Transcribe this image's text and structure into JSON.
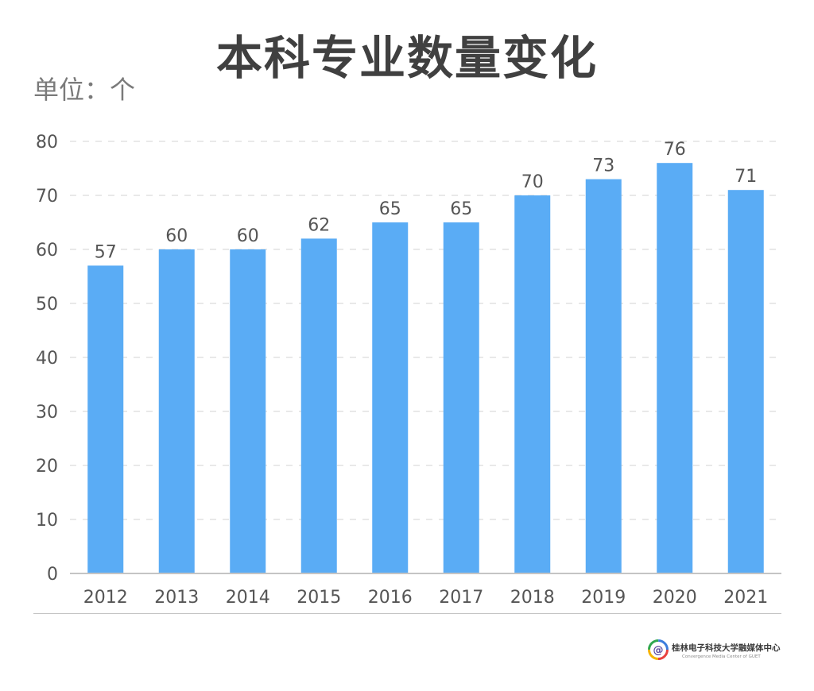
{
  "title": "本科专业数量变化",
  "unit_label": "单位：个",
  "colors": {
    "bar": "#5aacf5",
    "title": "#404040",
    "axis_text": "#555555",
    "grid": "#e2e2e2",
    "axis_line": "#c4c4c4"
  },
  "chart_data": {
    "type": "bar",
    "title": "本科专业数量变化",
    "unit": "单位：个",
    "categories": [
      "2012",
      "2013",
      "2014",
      "2015",
      "2016",
      "2017",
      "2018",
      "2019",
      "2020",
      "2021"
    ],
    "values": [
      57,
      60,
      60,
      62,
      65,
      65,
      70,
      73,
      76,
      71
    ],
    "ylim": [
      0,
      80
    ],
    "yticks": [
      0,
      10,
      20,
      30,
      40,
      50,
      60,
      70,
      80
    ],
    "grid": true,
    "grid_style": "dashed",
    "data_labels": true,
    "legend": false
  },
  "logo": {
    "icon": "at-sign-logo-icon",
    "name": "桂林电子科技大学融媒体中心",
    "subtitle": "Convergence Media Center of GUET"
  }
}
